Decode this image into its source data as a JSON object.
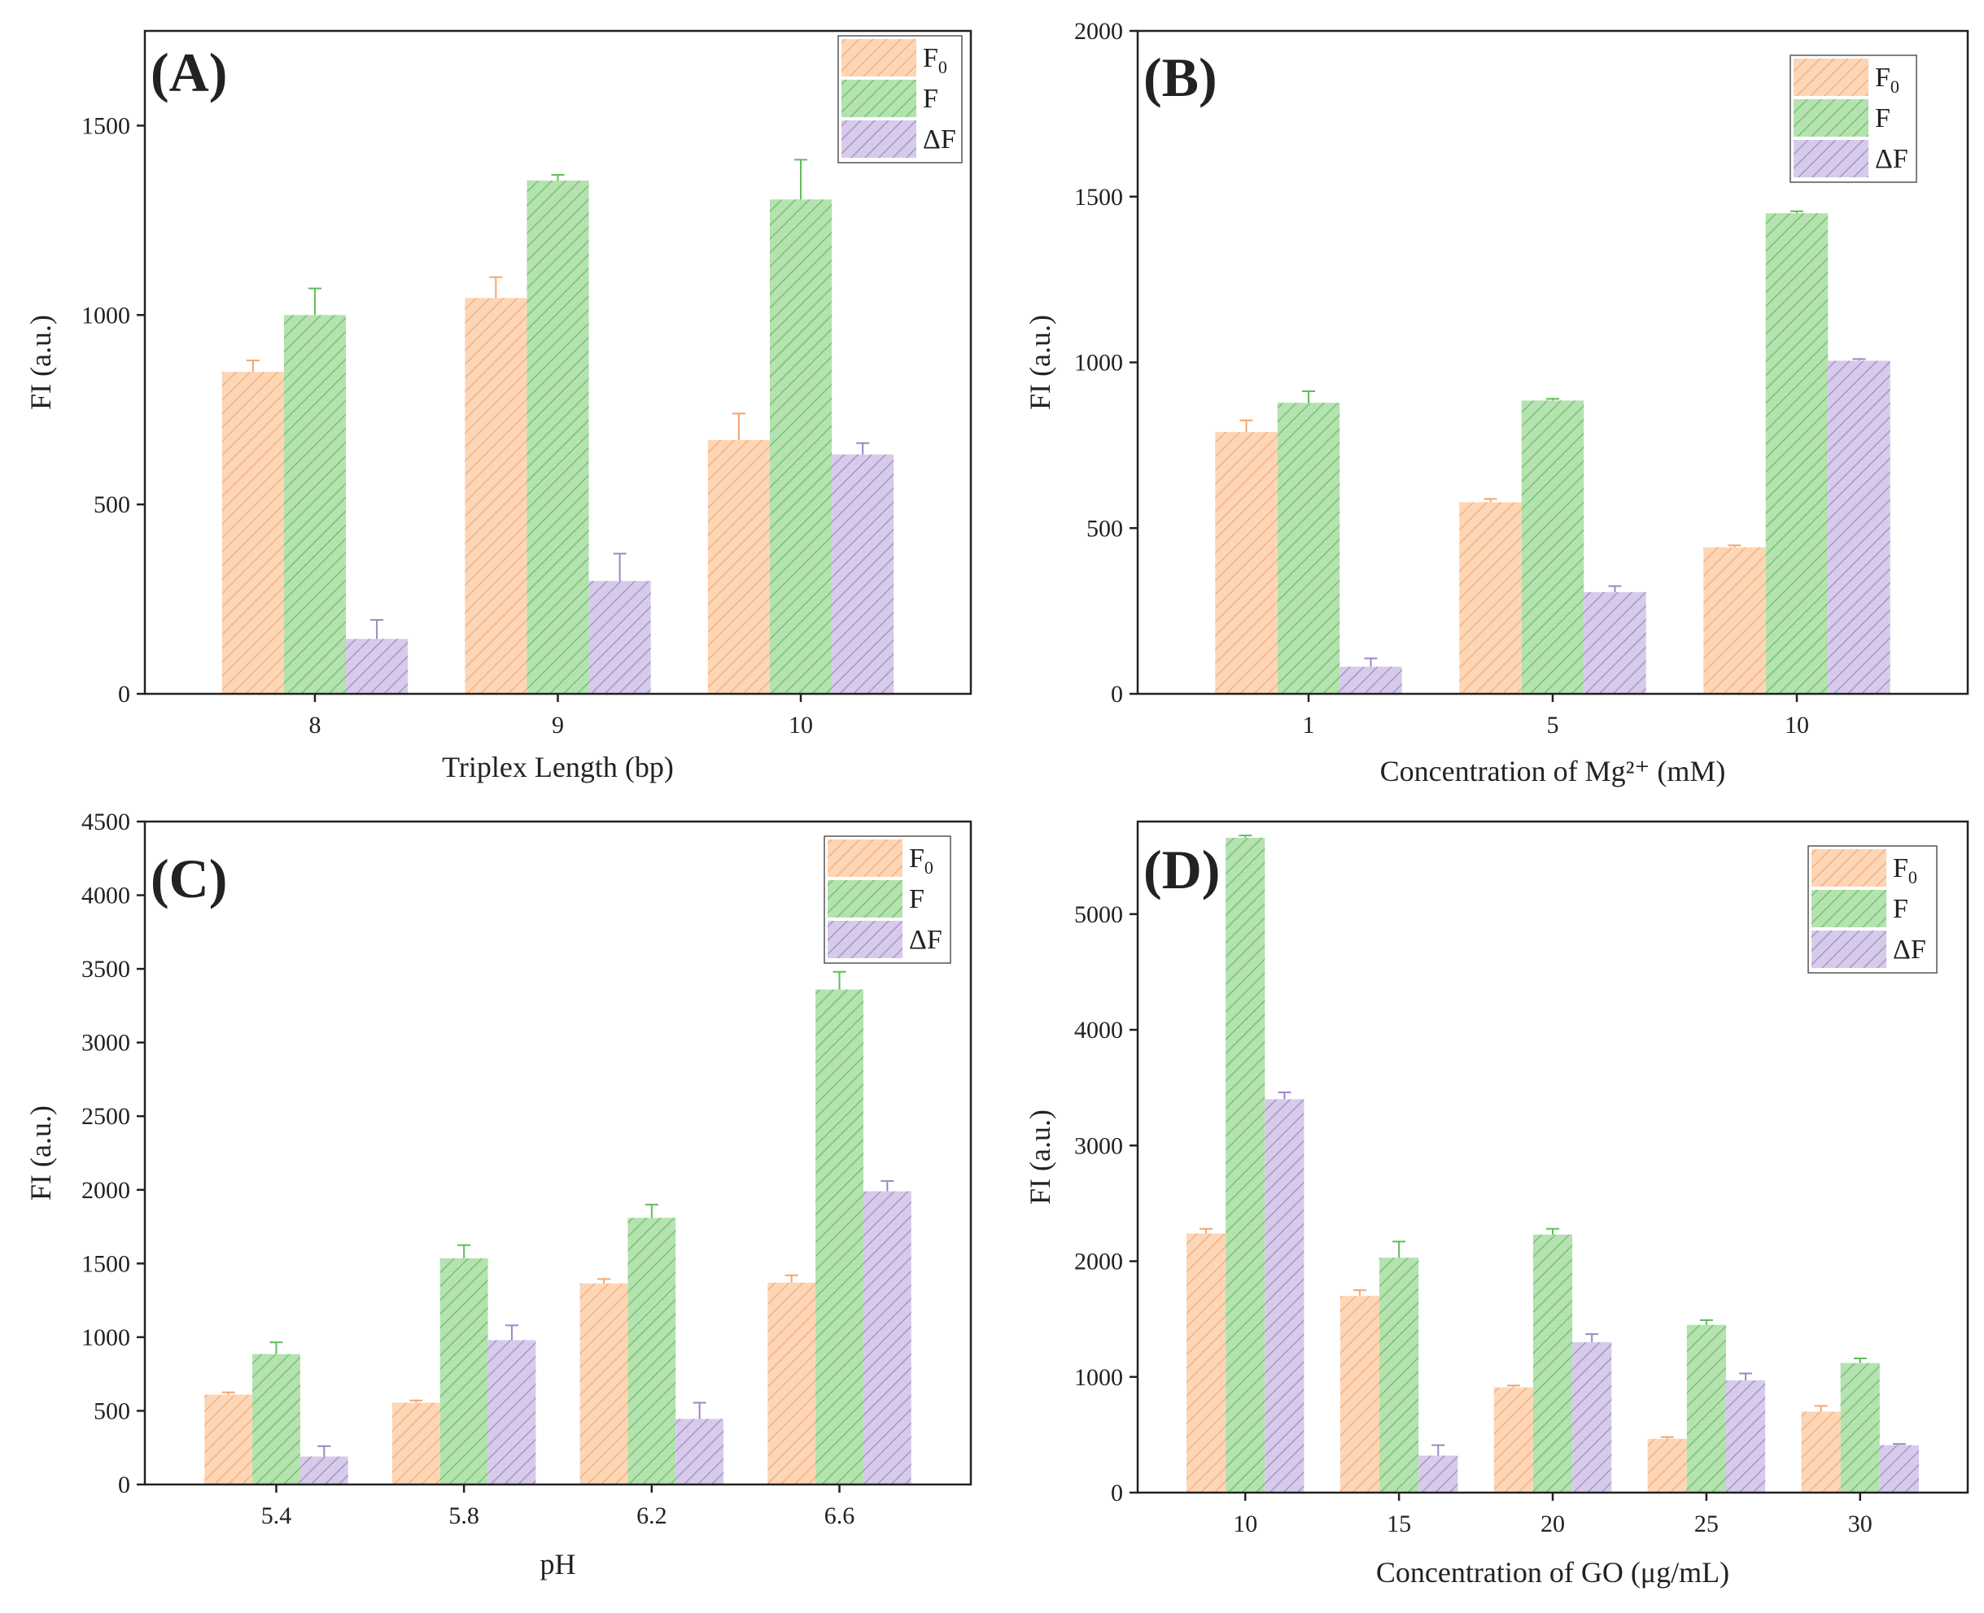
{
  "chart_data": [
    {
      "type": "bar",
      "label": "(A)",
      "xlabel": "Triplex Length (bp)",
      "ylabel": "FI (a.u.)",
      "ylim": [
        0,
        1750
      ],
      "yticks": [
        0,
        500,
        1000,
        1500
      ],
      "categories": [
        "8",
        "9",
        "10"
      ],
      "series": [
        {
          "name": "F0",
          "legend": {
            "base": "F",
            "sub": "0"
          },
          "values": [
            850,
            1045,
            670
          ],
          "errors": [
            30,
            55,
            70
          ]
        },
        {
          "name": "F",
          "legend": {
            "base": "F",
            "sub": ""
          },
          "values": [
            1000,
            1355,
            1305
          ],
          "errors": [
            70,
            15,
            105
          ]
        },
        {
          "name": "ΔF",
          "legend": {
            "base": "ΔF",
            "sub": ""
          },
          "values": [
            145,
            298,
            632
          ],
          "errors": [
            50,
            72,
            30
          ]
        }
      ],
      "legend_position": "top-right"
    },
    {
      "type": "bar",
      "label": "(B)",
      "xlabel": "Concentration of Mg²⁺ (mM)",
      "ylabel": "FI (a.u.)",
      "ylim": [
        0,
        2000
      ],
      "yticks": [
        0,
        500,
        1000,
        1500,
        2000
      ],
      "categories": [
        "1",
        "5",
        "10"
      ],
      "series": [
        {
          "name": "F0",
          "legend": {
            "base": "F",
            "sub": "0"
          },
          "values": [
            790,
            578,
            442
          ],
          "errors": [
            35,
            10,
            6
          ]
        },
        {
          "name": "F",
          "legend": {
            "base": "F",
            "sub": ""
          },
          "values": [
            878,
            885,
            1450
          ],
          "errors": [
            35,
            5,
            6
          ]
        },
        {
          "name": "ΔF",
          "legend": {
            "base": "ΔF",
            "sub": ""
          },
          "values": [
            82,
            307,
            1005
          ],
          "errors": [
            25,
            18,
            5
          ]
        }
      ],
      "legend_position": "top-right"
    },
    {
      "type": "bar",
      "label": "(C)",
      "xlabel": "pH",
      "ylabel": "FI (a.u.)",
      "ylim": [
        0,
        4500
      ],
      "yticks": [
        0,
        500,
        1000,
        1500,
        2000,
        2500,
        3000,
        3500,
        4000,
        4500
      ],
      "categories": [
        "5.4",
        "5.8",
        "6.2",
        "6.6"
      ],
      "series": [
        {
          "name": "F0",
          "legend": {
            "base": "F",
            "sub": "0"
          },
          "values": [
            610,
            555,
            1365,
            1370
          ],
          "errors": [
            15,
            15,
            30,
            50
          ]
        },
        {
          "name": "F",
          "legend": {
            "base": "F",
            "sub": ""
          },
          "values": [
            885,
            1535,
            1810,
            3360
          ],
          "errors": [
            80,
            90,
            90,
            120
          ]
        },
        {
          "name": "ΔF",
          "legend": {
            "base": "ΔF",
            "sub": ""
          },
          "values": [
            190,
            980,
            445,
            1990
          ],
          "errors": [
            70,
            100,
            110,
            70
          ]
        }
      ],
      "legend_position": "top-right"
    },
    {
      "type": "bar",
      "label": "(D)",
      "xlabel": "Concentration of GO (μg/mL)",
      "ylabel": "FI (a.u.)",
      "ylim": [
        0,
        5800
      ],
      "yticks": [
        0,
        1000,
        2000,
        3000,
        4000,
        5000
      ],
      "categories": [
        "10",
        "15",
        "20",
        "25",
        "30"
      ],
      "series": [
        {
          "name": "F0",
          "legend": {
            "base": "F",
            "sub": "0"
          },
          "values": [
            2240,
            1700,
            910,
            465,
            700
          ],
          "errors": [
            40,
            50,
            15,
            15,
            50
          ]
        },
        {
          "name": "F",
          "legend": {
            "base": "F",
            "sub": ""
          },
          "values": [
            5660,
            2030,
            2230,
            1450,
            1120
          ],
          "errors": [
            20,
            140,
            50,
            40,
            40
          ]
        },
        {
          "name": "ΔF",
          "legend": {
            "base": "ΔF",
            "sub": ""
          },
          "values": [
            3400,
            320,
            1300,
            970,
            410
          ],
          "errors": [
            60,
            90,
            70,
            60,
            10
          ]
        }
      ],
      "legend_position": "top-right"
    }
  ],
  "colors": {
    "F0": {
      "fill": "#fdd6b6",
      "hatch": "#f7b184",
      "err": "#f4a46e"
    },
    "F": {
      "fill": "#b5e2b0",
      "hatch": "#72c76c",
      "err": "#5fbd59"
    },
    "ΔF": {
      "fill": "#d7cbea",
      "hatch": "#a894cd",
      "err": "#9b86c5"
    }
  }
}
